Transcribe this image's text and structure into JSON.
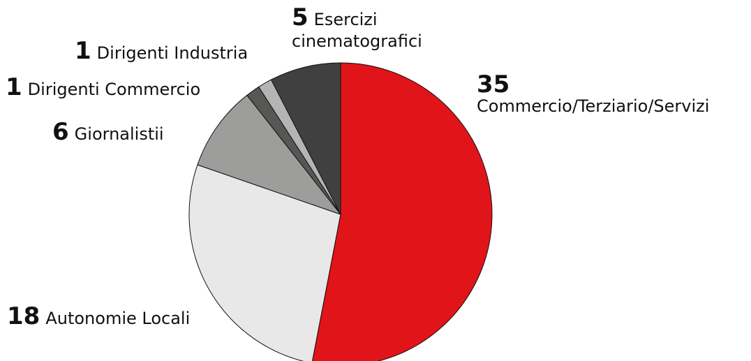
{
  "chart_data": {
    "type": "pie",
    "categories": [
      "Commercio/Terziario/Servizi",
      "Autonomie Locali",
      "Giornalistii",
      "Dirigenti Commercio",
      "Dirigenti Industria",
      "Esercizi cinematografici"
    ],
    "values": [
      35,
      18,
      6,
      1,
      1,
      5
    ],
    "colors": [
      "#e01419",
      "#e8e8e8",
      "#9d9d9b",
      "#575756",
      "#b4b4b4",
      "#404040"
    ]
  }
}
